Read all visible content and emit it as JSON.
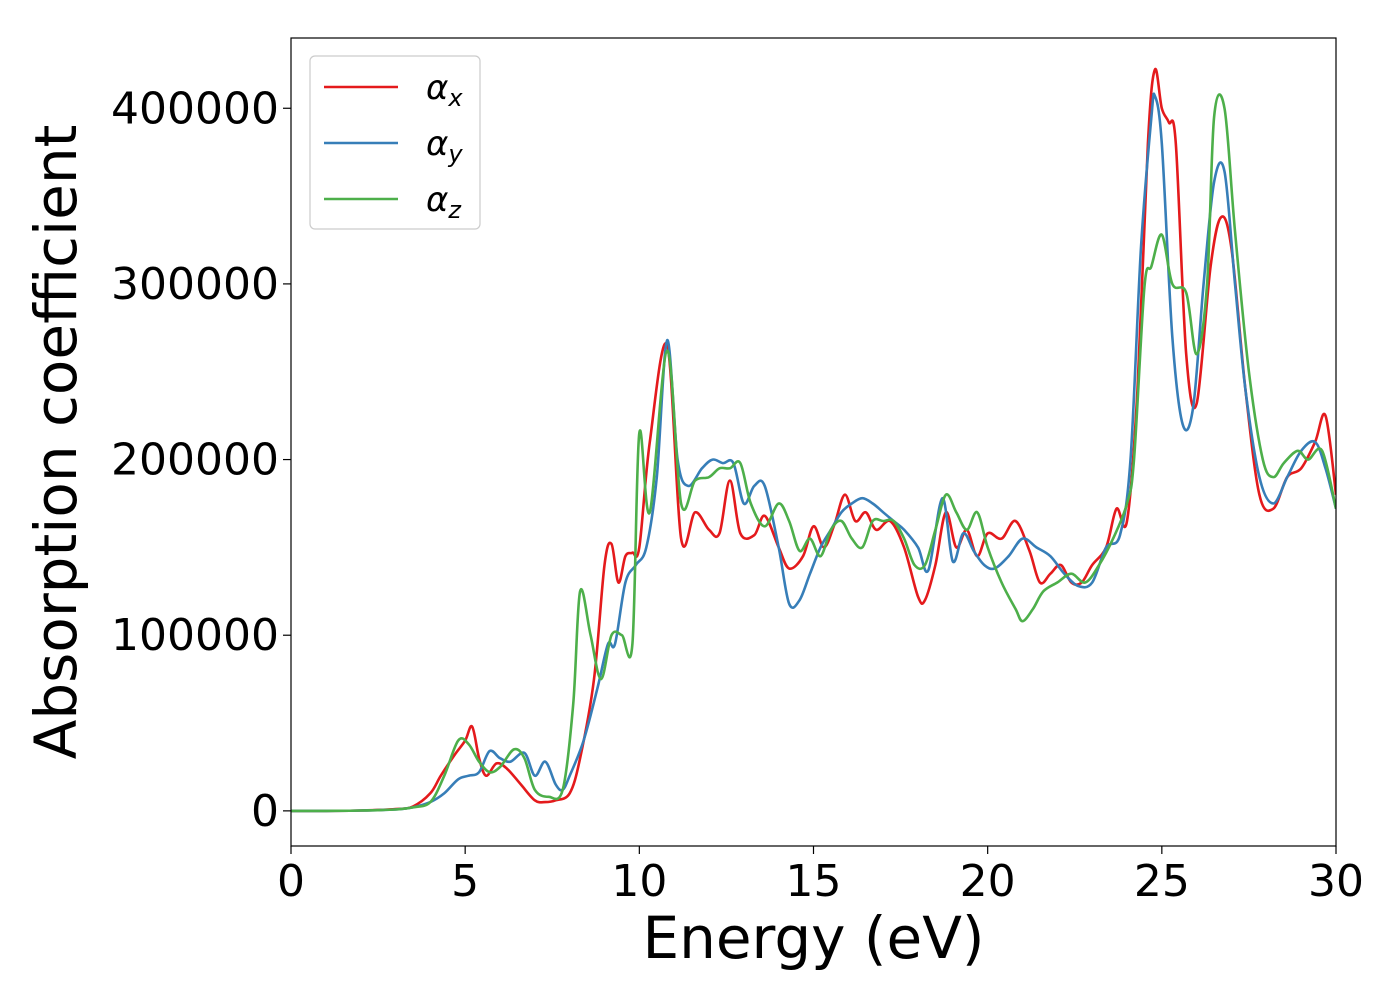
{
  "chart_data": {
    "type": "line",
    "xlabel": "Energy (eV)",
    "ylabel": "Absorption coefficient",
    "xlim": [
      0,
      30
    ],
    "ylim": [
      -20000,
      440000
    ],
    "xticks": [
      0,
      5,
      10,
      15,
      20,
      25,
      30
    ],
    "yticks": [
      0,
      100000,
      200000,
      300000,
      400000
    ],
    "grid": false,
    "legend_position": "top-left",
    "series": [
      {
        "name": "α_x",
        "symbol": "α",
        "subscript": "x",
        "color": "#e41a1c",
        "x": [
          0,
          1,
          2,
          3,
          3.5,
          4.0,
          4.3,
          4.7,
          5.0,
          5.2,
          5.4,
          5.6,
          5.9,
          6.2,
          6.6,
          7.0,
          7.3,
          7.6,
          8.0,
          8.3,
          8.7,
          9.0,
          9.2,
          9.4,
          9.6,
          9.8,
          10.0,
          10.3,
          10.8,
          11.2,
          11.6,
          12.0,
          12.3,
          12.6,
          12.9,
          13.3,
          13.6,
          14.0,
          14.3,
          14.7,
          15.0,
          15.3,
          15.6,
          15.9,
          16.2,
          16.5,
          16.8,
          17.2,
          17.6,
          18.0,
          18.2,
          18.5,
          18.8,
          19.1,
          19.4,
          19.7,
          20.0,
          20.4,
          20.8,
          21.2,
          21.5,
          21.8,
          22.1,
          22.4,
          22.7,
          23.0,
          23.4,
          23.7,
          24.0,
          24.3,
          24.6,
          24.8,
          25.0,
          25.2,
          25.4,
          25.7,
          26.0,
          26.4,
          26.7,
          27.0,
          27.4,
          27.8,
          28.2,
          28.6,
          29.0,
          29.4,
          29.7,
          30.0
        ],
        "y": [
          0,
          0,
          200,
          1000,
          2500,
          10000,
          20000,
          32000,
          40000,
          48000,
          30000,
          20000,
          27000,
          24000,
          15000,
          6000,
          5000,
          6000,
          10000,
          30000,
          75000,
          140000,
          152000,
          130000,
          145000,
          147000,
          150000,
          210000,
          265000,
          155000,
          170000,
          160000,
          158000,
          188000,
          158000,
          157000,
          168000,
          150000,
          138000,
          145000,
          162000,
          150000,
          163000,
          180000,
          165000,
          170000,
          160000,
          165000,
          150000,
          122000,
          120000,
          140000,
          170000,
          150000,
          160000,
          145000,
          158000,
          155000,
          165000,
          148000,
          130000,
          135000,
          140000,
          130000,
          130000,
          140000,
          150000,
          172000,
          165000,
          240000,
          380000,
          422000,
          400000,
          392000,
          380000,
          260000,
          232000,
          310000,
          338000,
          320000,
          240000,
          180000,
          172000,
          190000,
          195000,
          210000,
          225000,
          180000
        ]
      },
      {
        "name": "α_y",
        "symbol": "α",
        "subscript": "y",
        "color": "#377eb8",
        "x": [
          0,
          1,
          2,
          3,
          3.5,
          4.0,
          4.4,
          4.8,
          5.1,
          5.4,
          5.7,
          6.0,
          6.3,
          6.7,
          7.0,
          7.3,
          7.6,
          7.8,
          8.0,
          8.4,
          8.8,
          9.1,
          9.3,
          9.6,
          9.9,
          10.2,
          10.5,
          10.8,
          11.1,
          11.4,
          11.8,
          12.1,
          12.4,
          12.7,
          13.0,
          13.3,
          13.6,
          14.0,
          14.3,
          14.6,
          14.9,
          15.2,
          15.5,
          15.8,
          16.1,
          16.4,
          16.7,
          17.0,
          17.3,
          17.6,
          18.0,
          18.3,
          18.7,
          19.0,
          19.3,
          19.6,
          19.9,
          20.2,
          20.6,
          21.0,
          21.4,
          21.8,
          22.2,
          22.6,
          23.0,
          23.4,
          23.8,
          24.1,
          24.4,
          24.7,
          24.8,
          25.0,
          25.3,
          25.6,
          25.9,
          26.2,
          26.5,
          26.8,
          27.1,
          27.4,
          27.8,
          28.2,
          28.6,
          29.0,
          29.4,
          29.7,
          30.0
        ],
        "y": [
          0,
          0,
          200,
          800,
          2000,
          5000,
          10000,
          18000,
          20000,
          22000,
          34000,
          30000,
          28000,
          33000,
          20000,
          28000,
          15000,
          12000,
          20000,
          40000,
          70000,
          95000,
          95000,
          130000,
          140000,
          150000,
          190000,
          268000,
          200000,
          185000,
          195000,
          200000,
          198000,
          198000,
          175000,
          185000,
          185000,
          150000,
          118000,
          120000,
          135000,
          150000,
          160000,
          170000,
          175000,
          178000,
          175000,
          170000,
          165000,
          160000,
          150000,
          137000,
          178000,
          142000,
          158000,
          148000,
          140000,
          138000,
          145000,
          155000,
          150000,
          145000,
          135000,
          128000,
          130000,
          150000,
          157000,
          200000,
          320000,
          395000,
          407000,
          380000,
          270000,
          220000,
          230000,
          300000,
          358000,
          364000,
          300000,
          240000,
          190000,
          175000,
          190000,
          205000,
          210000,
          195000,
          172000
        ]
      },
      {
        "name": "α_z",
        "symbol": "α",
        "subscript": "z",
        "color": "#4daf4a",
        "x": [
          0,
          1,
          2,
          3,
          3.5,
          4.0,
          4.4,
          4.8,
          5.1,
          5.4,
          5.7,
          6.0,
          6.4,
          6.7,
          7.0,
          7.4,
          7.8,
          8.1,
          8.3,
          8.6,
          8.9,
          9.2,
          9.5,
          9.8,
          10.0,
          10.3,
          10.8,
          11.2,
          11.6,
          12.0,
          12.3,
          12.6,
          12.9,
          13.2,
          13.6,
          14.0,
          14.3,
          14.6,
          14.9,
          15.2,
          15.5,
          15.8,
          16.1,
          16.4,
          16.7,
          17.0,
          17.3,
          17.6,
          17.9,
          18.2,
          18.5,
          18.8,
          19.1,
          19.4,
          19.7,
          20.0,
          20.4,
          20.8,
          21.0,
          21.3,
          21.6,
          22.0,
          22.4,
          22.8,
          23.2,
          23.6,
          24.0,
          24.2,
          24.5,
          24.7,
          25.0,
          25.3,
          25.7,
          26.0,
          26.3,
          26.5,
          26.8,
          27.1,
          27.5,
          27.9,
          28.2,
          28.5,
          28.9,
          29.2,
          29.6,
          30.0
        ],
        "y": [
          0,
          0,
          200,
          800,
          2000,
          5000,
          20000,
          40000,
          38000,
          28000,
          22000,
          25000,
          35000,
          30000,
          12000,
          8000,
          12000,
          60000,
          125000,
          100000,
          75000,
          100000,
          100000,
          95000,
          215000,
          170000,
          262000,
          175000,
          188000,
          190000,
          195000,
          195000,
          198000,
          175000,
          162000,
          175000,
          165000,
          148000,
          155000,
          145000,
          160000,
          165000,
          155000,
          150000,
          165000,
          165000,
          165000,
          155000,
          140000,
          140000,
          160000,
          180000,
          170000,
          160000,
          170000,
          150000,
          130000,
          115000,
          108000,
          115000,
          125000,
          130000,
          135000,
          130000,
          140000,
          155000,
          175000,
          200000,
          298000,
          310000,
          328000,
          300000,
          295000,
          260000,
          300000,
          395000,
          400000,
          330000,
          250000,
          200000,
          190000,
          198000,
          205000,
          200000,
          205000,
          172000
        ]
      }
    ]
  }
}
